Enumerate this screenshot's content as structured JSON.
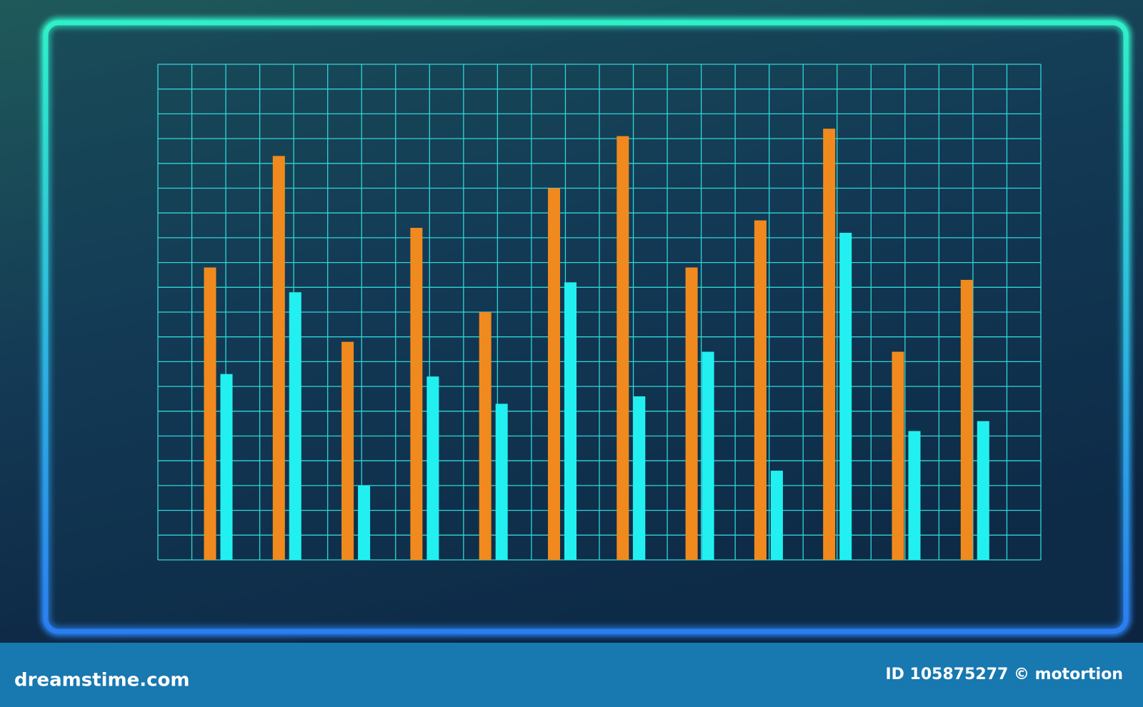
{
  "chart_data": {
    "type": "bar",
    "categories": [
      null,
      null,
      null,
      null,
      null,
      null,
      null,
      null,
      null,
      null,
      null,
      null
    ],
    "series": [
      {
        "color": "#f08a1e",
        "values": [
          11.8,
          16.3,
          8.8,
          13.4,
          10.0,
          15.0,
          17.1,
          11.8,
          13.7,
          17.4,
          8.4,
          11.3
        ]
      },
      {
        "color": "#22f0f0",
        "values": [
          7.5,
          10.8,
          3.0,
          7.4,
          6.3,
          11.2,
          6.6,
          8.4,
          3.6,
          13.2,
          5.2,
          5.6
        ]
      }
    ],
    "ylim": [
      0,
      20
    ],
    "yticks": [
      0,
      1,
      2,
      3,
      4,
      5,
      6,
      7,
      8,
      9,
      10,
      11,
      12,
      13,
      14,
      15,
      16,
      17,
      18,
      19,
      20
    ],
    "grid": true
  },
  "footer": {
    "site": "dreamstime.com",
    "credit": "ID 105875277 © motortion"
  }
}
